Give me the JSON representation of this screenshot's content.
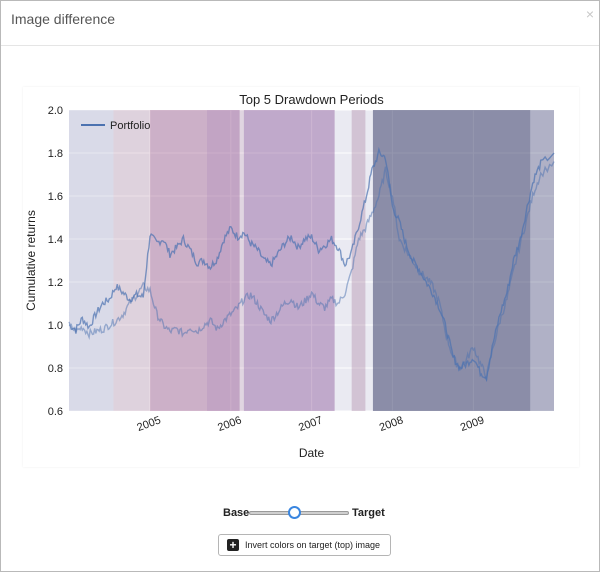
{
  "dialog": {
    "title": "Image difference",
    "close_glyph": "×"
  },
  "slider": {
    "left_label": "Base",
    "right_label": "Target",
    "position": 0.45
  },
  "invert_button": {
    "icon": "plus-box-icon",
    "icon_glyph": "+",
    "label": "Invert colors on target (top) image"
  },
  "chart_data": {
    "type": "line",
    "title": "Top 5 Drawdown Periods",
    "xlabel": "Date",
    "ylabel": "Cumulative returns",
    "xlim": [
      "2004-01-01",
      "2009-12-31"
    ],
    "ylim": [
      0.6,
      2.0
    ],
    "y_ticks": [
      0.6,
      0.8,
      1.0,
      1.2,
      1.4,
      1.6,
      1.8,
      2.0
    ],
    "y_tick_labels": [
      "0.6",
      "0.8",
      "1.0",
      "1.2",
      "1.4",
      "1.6",
      "1.8",
      "2.0"
    ],
    "x_ticks": [
      "2005-01-01",
      "2006-01-01",
      "2007-01-01",
      "2008-01-01",
      "2009-01-01"
    ],
    "x_tick_labels": [
      "2005",
      "2006",
      "2007",
      "2008",
      "2009"
    ],
    "grid": true,
    "legend": {
      "placement": "top-left",
      "entries": [
        "Portfolio"
      ]
    },
    "line_color": "#4c72b0",
    "series": [
      {
        "name": "Portfolio",
        "layer": "base",
        "points": [
          [
            "2004-01-01",
            1.0
          ],
          [
            "2004-02-01",
            0.98
          ],
          [
            "2004-03-01",
            1.03
          ],
          [
            "2004-04-01",
            0.99
          ],
          [
            "2004-05-01",
            1.05
          ],
          [
            "2004-06-01",
            1.1
          ],
          [
            "2004-07-01",
            1.12
          ],
          [
            "2004-08-01",
            1.18
          ],
          [
            "2004-09-01",
            1.15
          ],
          [
            "2004-10-01",
            1.12
          ],
          [
            "2004-11-01",
            1.14
          ],
          [
            "2004-12-01",
            1.13
          ],
          [
            "2005-01-01",
            1.42
          ],
          [
            "2005-02-01",
            1.38
          ],
          [
            "2005-03-01",
            1.4
          ],
          [
            "2005-04-01",
            1.33
          ],
          [
            "2005-05-01",
            1.36
          ],
          [
            "2005-06-01",
            1.4
          ],
          [
            "2005-07-01",
            1.35
          ],
          [
            "2005-08-01",
            1.29
          ],
          [
            "2005-09-01",
            1.3
          ],
          [
            "2005-10-01",
            1.27
          ],
          [
            "2005-11-01",
            1.31
          ],
          [
            "2005-12-01",
            1.4
          ],
          [
            "2006-01-01",
            1.45
          ],
          [
            "2006-02-01",
            1.41
          ],
          [
            "2006-03-01",
            1.43
          ],
          [
            "2006-04-01",
            1.38
          ],
          [
            "2006-05-01",
            1.35
          ],
          [
            "2006-06-01",
            1.3
          ],
          [
            "2006-07-01",
            1.28
          ],
          [
            "2006-08-01",
            1.33
          ],
          [
            "2006-09-01",
            1.38
          ],
          [
            "2006-10-01",
            1.41
          ],
          [
            "2006-11-01",
            1.36
          ],
          [
            "2006-12-01",
            1.4
          ],
          [
            "2007-01-01",
            1.41
          ],
          [
            "2007-02-01",
            1.35
          ],
          [
            "2007-03-01",
            1.37
          ],
          [
            "2007-04-01",
            1.4
          ],
          [
            "2007-05-01",
            1.36
          ],
          [
            "2007-06-01",
            1.28
          ],
          [
            "2007-07-01",
            1.34
          ],
          [
            "2007-08-01",
            1.46
          ],
          [
            "2007-09-01",
            1.58
          ],
          [
            "2007-10-01",
            1.72
          ],
          [
            "2007-11-01",
            1.8
          ],
          [
            "2007-12-01",
            1.78
          ],
          [
            "2008-01-01",
            1.55
          ],
          [
            "2008-02-01",
            1.48
          ],
          [
            "2008-03-01",
            1.38
          ],
          [
            "2008-04-01",
            1.3
          ],
          [
            "2008-05-01",
            1.26
          ],
          [
            "2008-06-01",
            1.2
          ],
          [
            "2008-07-01",
            1.15
          ],
          [
            "2008-08-01",
            1.08
          ],
          [
            "2008-09-01",
            0.98
          ],
          [
            "2008-10-01",
            0.85
          ],
          [
            "2008-11-01",
            0.8
          ],
          [
            "2008-12-01",
            0.82
          ],
          [
            "2009-01-01",
            0.85
          ],
          [
            "2009-02-01",
            0.78
          ],
          [
            "2009-03-01",
            0.76
          ],
          [
            "2009-04-01",
            0.92
          ],
          [
            "2009-05-01",
            1.05
          ],
          [
            "2009-06-01",
            1.15
          ],
          [
            "2009-07-01",
            1.3
          ],
          [
            "2009-08-01",
            1.4
          ],
          [
            "2009-09-01",
            1.55
          ],
          [
            "2009-10-01",
            1.68
          ],
          [
            "2009-11-01",
            1.75
          ],
          [
            "2009-12-31",
            1.8
          ]
        ]
      },
      {
        "name": "Portfolio",
        "layer": "target",
        "points": [
          [
            "2004-01-01",
            1.0
          ],
          [
            "2004-02-01",
            0.97
          ],
          [
            "2004-03-01",
            0.99
          ],
          [
            "2004-04-01",
            0.96
          ],
          [
            "2004-05-01",
            0.97
          ],
          [
            "2004-06-01",
            0.98
          ],
          [
            "2004-07-01",
            1.0
          ],
          [
            "2004-08-01",
            1.02
          ],
          [
            "2004-09-01",
            1.05
          ],
          [
            "2004-10-01",
            1.1
          ],
          [
            "2004-11-01",
            1.14
          ],
          [
            "2004-12-01",
            1.18
          ],
          [
            "2005-01-01",
            1.16
          ],
          [
            "2005-02-01",
            1.05
          ],
          [
            "2005-03-01",
            1.0
          ],
          [
            "2005-04-01",
            0.97
          ],
          [
            "2005-05-01",
            0.98
          ],
          [
            "2005-06-01",
            0.96
          ],
          [
            "2005-07-01",
            0.99
          ],
          [
            "2005-08-01",
            0.97
          ],
          [
            "2005-09-01",
            1.0
          ],
          [
            "2005-10-01",
            1.02
          ],
          [
            "2005-11-01",
            0.98
          ],
          [
            "2005-12-01",
            1.02
          ],
          [
            "2006-01-01",
            1.05
          ],
          [
            "2006-02-01",
            1.08
          ],
          [
            "2006-03-01",
            1.12
          ],
          [
            "2006-04-01",
            1.14
          ],
          [
            "2006-05-01",
            1.1
          ],
          [
            "2006-06-01",
            1.05
          ],
          [
            "2006-07-01",
            1.02
          ],
          [
            "2006-08-01",
            1.06
          ],
          [
            "2006-09-01",
            1.1
          ],
          [
            "2006-10-01",
            1.12
          ],
          [
            "2006-11-01",
            1.08
          ],
          [
            "2006-12-01",
            1.11
          ],
          [
            "2007-01-01",
            1.15
          ],
          [
            "2007-02-01",
            1.1
          ],
          [
            "2007-03-01",
            1.08
          ],
          [
            "2007-04-01",
            1.12
          ],
          [
            "2007-05-01",
            1.1
          ],
          [
            "2007-06-01",
            1.15
          ],
          [
            "2007-07-01",
            1.25
          ],
          [
            "2007-08-01",
            1.4
          ],
          [
            "2007-09-01",
            1.45
          ],
          [
            "2007-10-01",
            1.52
          ],
          [
            "2007-11-01",
            1.6
          ],
          [
            "2007-12-01",
            1.72
          ],
          [
            "2008-01-01",
            1.6
          ],
          [
            "2008-02-01",
            1.4
          ],
          [
            "2008-03-01",
            1.35
          ],
          [
            "2008-04-01",
            1.3
          ],
          [
            "2008-05-01",
            1.25
          ],
          [
            "2008-06-01",
            1.22
          ],
          [
            "2008-07-01",
            1.18
          ],
          [
            "2008-08-01",
            1.1
          ],
          [
            "2008-09-01",
            0.95
          ],
          [
            "2008-10-01",
            0.85
          ],
          [
            "2008-11-01",
            0.8
          ],
          [
            "2008-12-01",
            0.84
          ],
          [
            "2009-01-01",
            0.9
          ],
          [
            "2009-02-01",
            0.82
          ],
          [
            "2009-03-01",
            0.76
          ],
          [
            "2009-04-01",
            0.9
          ],
          [
            "2009-05-01",
            1.02
          ],
          [
            "2009-06-01",
            1.12
          ],
          [
            "2009-07-01",
            1.25
          ],
          [
            "2009-08-01",
            1.38
          ],
          [
            "2009-09-01",
            1.5
          ],
          [
            "2009-10-01",
            1.62
          ],
          [
            "2009-11-01",
            1.7
          ],
          [
            "2009-12-31",
            1.76
          ]
        ]
      }
    ],
    "drawdown_periods": [
      {
        "start": "2004-01-01",
        "end": "2004-07-20",
        "color": "#b9bcd6",
        "opacity": 0.35
      },
      {
        "start": "2004-07-20",
        "end": "2005-01-01",
        "color": "#c9a6b8",
        "opacity": 0.35
      },
      {
        "start": "2005-01-01",
        "end": "2005-09-15",
        "color": "#a96a95",
        "opacity": 0.45
      },
      {
        "start": "2005-09-15",
        "end": "2006-02-10",
        "color": "#9a5d95",
        "opacity": 0.5
      },
      {
        "start": "2006-02-10",
        "end": "2006-03-01",
        "color": "#c9a6b8",
        "opacity": 0.3
      },
      {
        "start": "2006-03-01",
        "end": "2007-04-15",
        "color": "#8d5b9b",
        "opacity": 0.45
      },
      {
        "start": "2007-07-01",
        "end": "2007-09-01",
        "color": "#b08aa7",
        "opacity": 0.4
      },
      {
        "start": "2007-10-05",
        "end": "2009-09-15",
        "color": "#3d3f6b",
        "opacity": 0.55
      },
      {
        "start": "2009-09-15",
        "end": "2009-12-31",
        "color": "#5a5d85",
        "opacity": 0.4
      }
    ]
  }
}
